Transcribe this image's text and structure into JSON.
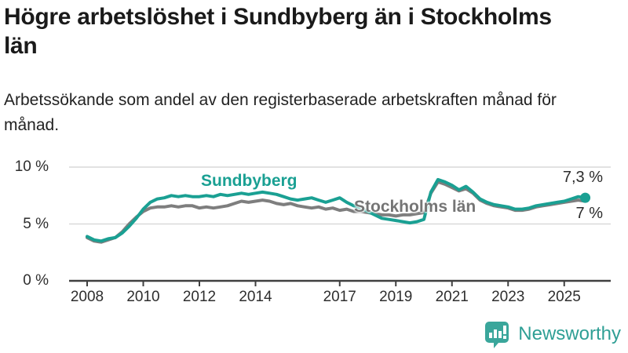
{
  "header": {
    "title": "Högre arbetslöshet i Sundbyberg än i Stockholms län",
    "subtitle": "Arbetssökande som andel av den registerbaserade arbetskraften månad för månad."
  },
  "chart": {
    "series_labels": {
      "sundbyberg": "Sundbyberg",
      "stockholm": "Stockholms län"
    },
    "end_labels": {
      "sundbyberg": "7,3 %",
      "stockholm": "7 %"
    },
    "colors": {
      "sundbyberg": "#1AA093",
      "stockholm": "#7E7E7E",
      "grid": "#D9D9D9",
      "axis": "#404040",
      "tick_text": "#2E2E2E"
    }
  },
  "chart_data": {
    "type": "line",
    "title": "Högre arbetslöshet i Sundbyberg än i Stockholms län",
    "subtitle": "Arbetssökande som andel av den registerbaserade arbetskraften månad för månad.",
    "xlabel": "",
    "ylabel": "",
    "x_start": 2008,
    "x_step": 0.25,
    "x_end": 2025.75,
    "ylim": [
      0,
      10
    ],
    "y_tick_values": [
      0,
      5,
      10
    ],
    "y_tick_labels": [
      "0 %",
      "5 %",
      "10 %"
    ],
    "x_tick_years": [
      2008,
      2010,
      2012,
      2014,
      2017,
      2019,
      2021,
      2023,
      2025
    ],
    "x_tick_labels": [
      "2008",
      "2010",
      "2012",
      "2014",
      "2017",
      "2019",
      "2021",
      "2023",
      "2025"
    ],
    "grid": "horizontal",
    "legend_position": "inline-labels",
    "end_point_marker": {
      "series": "Sundbyberg",
      "x": 2025.75,
      "value": 7.3
    },
    "end_values": {
      "Sundbyberg": 7.3,
      "Stockholms län": 7.0
    },
    "series": [
      {
        "name": "Sundbyberg",
        "color": "#1AA093",
        "values": [
          3.9,
          3.6,
          3.5,
          3.7,
          3.8,
          4.2,
          4.8,
          5.5,
          6.3,
          6.9,
          7.2,
          7.3,
          7.5,
          7.4,
          7.5,
          7.4,
          7.4,
          7.5,
          7.4,
          7.6,
          7.5,
          7.6,
          7.7,
          7.6,
          7.7,
          7.8,
          7.7,
          7.6,
          7.4,
          7.2,
          7.1,
          7.2,
          7.3,
          7.1,
          6.9,
          7.1,
          7.3,
          6.9,
          6.6,
          6.4,
          6.1,
          5.8,
          5.5,
          5.4,
          5.3,
          5.2,
          5.1,
          5.2,
          5.4,
          7.8,
          8.9,
          8.7,
          8.4,
          8.0,
          8.3,
          7.8,
          7.2,
          6.9,
          6.7,
          6.6,
          6.5,
          6.3,
          6.3,
          6.4,
          6.6,
          6.7,
          6.8,
          6.9,
          7.0,
          7.2,
          7.4,
          7.3
        ]
      },
      {
        "name": "Stockholms län",
        "color": "#7E7E7E",
        "values": [
          3.8,
          3.5,
          3.4,
          3.6,
          3.8,
          4.3,
          5.0,
          5.6,
          6.1,
          6.4,
          6.5,
          6.5,
          6.6,
          6.5,
          6.6,
          6.6,
          6.4,
          6.5,
          6.4,
          6.5,
          6.6,
          6.8,
          7.0,
          6.9,
          7.0,
          7.1,
          7.0,
          6.8,
          6.7,
          6.8,
          6.6,
          6.5,
          6.4,
          6.5,
          6.3,
          6.4,
          6.2,
          6.3,
          6.1,
          6.1,
          6.0,
          5.9,
          5.8,
          5.8,
          5.7,
          5.8,
          5.8,
          5.9,
          6.0,
          7.7,
          8.7,
          8.5,
          8.2,
          7.9,
          8.1,
          7.7,
          7.1,
          6.8,
          6.6,
          6.5,
          6.4,
          6.2,
          6.2,
          6.3,
          6.5,
          6.6,
          6.7,
          6.8,
          6.9,
          7.0,
          7.1,
          7.0
        ]
      }
    ]
  },
  "footer": {
    "brand": "Newsworthy",
    "brand_color": "#2F9F95",
    "logo_icon": "bar-chart-speech-bubble"
  }
}
